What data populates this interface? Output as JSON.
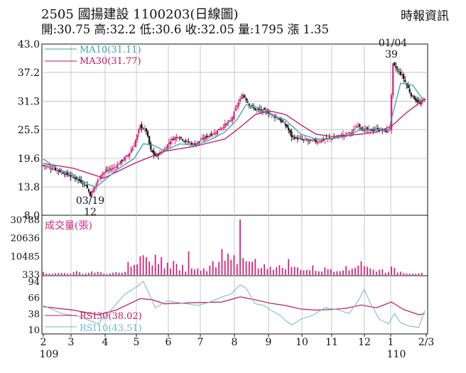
{
  "header": {
    "code": "2505",
    "name": "國揚建設",
    "date": "1100203",
    "chart_kind": "(日線圖)",
    "source": "時報資訊",
    "open_label": "開:",
    "open": "30.75",
    "high_label": "高:",
    "high": "32.2",
    "low_label": "低:",
    "low": "30.6",
    "close_label": "收:",
    "close": "32.05",
    "volume_label": "量:",
    "volume": "1795",
    "change_label": "漲",
    "change": "1.35"
  },
  "colors": {
    "up": "#d6247a",
    "down": "#111111",
    "ma10": "#3aa0b6",
    "ma30": "#c2185b",
    "volume": "#d6247a",
    "rsi30": "#c2185b",
    "rsi10": "#6fb7c7",
    "grid": "#bdbdbd"
  },
  "chart_data": {
    "type": "candlestick",
    "x_ticks": [
      "2",
      "3",
      "4",
      "5",
      "6",
      "7",
      "8",
      "9",
      "10",
      "11",
      "12",
      "1",
      "2/3"
    ],
    "x_year_labels": [
      {
        "after_tick": "2",
        "text": "109"
      },
      {
        "after_tick": "1",
        "text": "110"
      }
    ],
    "price_panel": {
      "y_ticks": [
        "43.0",
        "37.2",
        "31.3",
        "25.5",
        "19.6",
        "13.8",
        "8.0"
      ],
      "ylim": [
        8.0,
        43.0
      ],
      "legend": [
        {
          "key": "MA10",
          "label": "MA10(31.11)"
        },
        {
          "key": "MA30",
          "label": "MA30(31.77)"
        }
      ],
      "annotations": [
        {
          "date": "03/19",
          "value": "12",
          "kind": "low"
        },
        {
          "date": "01/04",
          "value": "39",
          "kind": "high"
        }
      ],
      "close_path": [
        [
          0,
          18.2
        ],
        [
          8,
          17.4
        ],
        [
          16,
          16.3
        ],
        [
          22,
          15.5
        ],
        [
          28,
          14.2
        ],
        [
          31,
          12.2
        ],
        [
          34,
          13.9
        ],
        [
          38,
          16.4
        ],
        [
          42,
          17.1
        ],
        [
          47,
          17.8
        ],
        [
          52,
          19.2
        ],
        [
          56,
          20.3
        ],
        [
          60,
          22.4
        ],
        [
          64,
          26.3
        ],
        [
          68,
          25.2
        ],
        [
          71,
          21.2
        ],
        [
          74,
          20.1
        ],
        [
          79,
          21.1
        ],
        [
          84,
          23.3
        ],
        [
          89,
          24.2
        ],
        [
          94,
          23.1
        ],
        [
          99,
          22.5
        ],
        [
          104,
          23.3
        ],
        [
          109,
          24.3
        ],
        [
          114,
          25.0
        ],
        [
          119,
          26.3
        ],
        [
          124,
          27.3
        ],
        [
          128,
          30.5
        ],
        [
          132,
          32.7
        ],
        [
          136,
          30.6
        ],
        [
          140,
          29.6
        ],
        [
          146,
          29.3
        ],
        [
          151,
          28.6
        ],
        [
          156,
          27.6
        ],
        [
          161,
          26.0
        ],
        [
          164,
          24.1
        ],
        [
          169,
          23.6
        ],
        [
          174,
          23.3
        ],
        [
          180,
          23.1
        ],
        [
          186,
          23.5
        ],
        [
          192,
          23.9
        ],
        [
          198,
          24.4
        ],
        [
          204,
          25.0
        ],
        [
          208,
          26.6
        ],
        [
          211,
          25.6
        ],
        [
          216,
          25.3
        ],
        [
          221,
          25.6
        ],
        [
          226,
          25.2
        ],
        [
          229,
          25.8
        ],
        [
          231,
          38.8
        ],
        [
          234,
          37.6
        ],
        [
          237,
          36.6
        ],
        [
          240,
          34.6
        ],
        [
          243,
          32.6
        ],
        [
          246,
          31.6
        ],
        [
          249,
          30.7
        ],
        [
          252,
          32.05
        ]
      ],
      "ma10_path": [
        [
          0,
          19.5
        ],
        [
          10,
          17.4
        ],
        [
          20,
          16.3
        ],
        [
          30,
          14.3
        ],
        [
          35,
          13.8
        ],
        [
          42,
          15.6
        ],
        [
          50,
          17.6
        ],
        [
          60,
          19.6
        ],
        [
          66,
          22.6
        ],
        [
          72,
          22.4
        ],
        [
          80,
          21.2
        ],
        [
          90,
          22.6
        ],
        [
          100,
          22.3
        ],
        [
          110,
          23.4
        ],
        [
          120,
          25.0
        ],
        [
          128,
          27.6
        ],
        [
          134,
          30.6
        ],
        [
          140,
          30.2
        ],
        [
          150,
          28.6
        ],
        [
          160,
          27.5
        ],
        [
          170,
          24.6
        ],
        [
          180,
          23.6
        ],
        [
          190,
          23.6
        ],
        [
          200,
          24.1
        ],
        [
          210,
          25.6
        ],
        [
          220,
          25.6
        ],
        [
          228,
          25.3
        ],
        [
          236,
          35.0
        ],
        [
          244,
          34.6
        ],
        [
          252,
          31.11
        ]
      ],
      "ma30_path": [
        [
          0,
          18.6
        ],
        [
          20,
          17.6
        ],
        [
          40,
          15.6
        ],
        [
          60,
          18.6
        ],
        [
          80,
          21.1
        ],
        [
          100,
          22.1
        ],
        [
          120,
          23.6
        ],
        [
          130,
          26.0
        ],
        [
          140,
          28.6
        ],
        [
          150,
          29.3
        ],
        [
          160,
          28.6
        ],
        [
          170,
          26.5
        ],
        [
          180,
          24.6
        ],
        [
          190,
          24.1
        ],
        [
          200,
          24.3
        ],
        [
          210,
          24.6
        ],
        [
          220,
          25.0
        ],
        [
          230,
          26.2
        ],
        [
          240,
          29.0
        ],
        [
          252,
          31.77
        ]
      ]
    },
    "volume_panel": {
      "y_ticks": [
        "30788",
        "20636",
        "10485",
        "333"
      ],
      "ylim": [
        333,
        30788
      ],
      "label": "成交量(張)",
      "values_by_day": [
        [
          0,
          1500
        ],
        [
          8,
          900
        ],
        [
          12,
          1300
        ],
        [
          18,
          1100
        ],
        [
          22,
          1800
        ],
        [
          28,
          1000
        ],
        [
          33,
          2400
        ],
        [
          40,
          800
        ],
        [
          48,
          1300
        ],
        [
          55,
          1700
        ],
        [
          57,
          12000
        ],
        [
          60,
          5400
        ],
        [
          64,
          9800
        ],
        [
          66,
          12700
        ],
        [
          68,
          8800
        ],
        [
          70,
          11600
        ],
        [
          72,
          6700
        ],
        [
          74,
          12100
        ],
        [
          76,
          5900
        ],
        [
          78,
          8600
        ],
        [
          80,
          7100
        ],
        [
          82,
          6400
        ],
        [
          84,
          4900
        ],
        [
          86,
          8400
        ],
        [
          88,
          6100
        ],
        [
          90,
          4300
        ],
        [
          92,
          5600
        ],
        [
          94,
          4000
        ],
        [
          96,
          12400
        ],
        [
          98,
          3600
        ],
        [
          100,
          6200
        ],
        [
          102,
          3800
        ],
        [
          104,
          4300
        ],
        [
          106,
          5700
        ],
        [
          108,
          3700
        ],
        [
          110,
          7700
        ],
        [
          112,
          6400
        ],
        [
          114,
          4500
        ],
        [
          116,
          7900
        ],
        [
          118,
          14200
        ],
        [
          120,
          8300
        ],
        [
          122,
          13400
        ],
        [
          124,
          7300
        ],
        [
          126,
          12800
        ],
        [
          128,
          6800
        ],
        [
          130,
          30788
        ],
        [
          132,
          9300
        ],
        [
          134,
          6400
        ],
        [
          136,
          12300
        ],
        [
          138,
          7800
        ],
        [
          140,
          13700
        ],
        [
          142,
          6500
        ],
        [
          144,
          3900
        ],
        [
          146,
          5600
        ],
        [
          150,
          6700
        ],
        [
          154,
          4700
        ],
        [
          158,
          5100
        ],
        [
          162,
          8200
        ],
        [
          166,
          4300
        ],
        [
          170,
          4900
        ],
        [
          174,
          3100
        ],
        [
          178,
          4600
        ],
        [
          182,
          2900
        ],
        [
          186,
          3800
        ],
        [
          190,
          4200
        ],
        [
          194,
          3400
        ],
        [
          198,
          5200
        ],
        [
          202,
          3000
        ],
        [
          206,
          6300
        ],
        [
          210,
          9700
        ],
        [
          214,
          4800
        ],
        [
          218,
          3000
        ],
        [
          222,
          3900
        ],
        [
          226,
          2400
        ],
        [
          230,
          4200
        ],
        [
          234,
          2300
        ],
        [
          238,
          1700
        ],
        [
          242,
          1300
        ],
        [
          246,
          1000
        ],
        [
          250,
          1795
        ]
      ]
    },
    "rsi_panel": {
      "y_ticks": [
        "94",
        "66",
        "38",
        "10"
      ],
      "ylim": [
        10,
        94
      ],
      "legend": [
        {
          "key": "RSI30",
          "label": "RSI30(38.02)"
        },
        {
          "key": "RSI10",
          "label": "RSI10(43.51)"
        }
      ],
      "rsi30_path": [
        [
          0,
          50
        ],
        [
          20,
          44
        ],
        [
          36,
          36
        ],
        [
          48,
          44
        ],
        [
          64,
          64
        ],
        [
          72,
          62
        ],
        [
          80,
          55
        ],
        [
          100,
          57
        ],
        [
          118,
          58
        ],
        [
          130,
          67
        ],
        [
          140,
          62
        ],
        [
          150,
          56
        ],
        [
          160,
          52
        ],
        [
          170,
          46
        ],
        [
          180,
          44
        ],
        [
          190,
          45
        ],
        [
          200,
          47
        ],
        [
          210,
          53
        ],
        [
          220,
          48
        ],
        [
          230,
          58
        ],
        [
          238,
          45
        ],
        [
          248,
          36
        ],
        [
          252,
          38.02
        ]
      ],
      "rsi10_path": [
        [
          0,
          52
        ],
        [
          12,
          38
        ],
        [
          24,
          33
        ],
        [
          36,
          20
        ],
        [
          44,
          42
        ],
        [
          54,
          72
        ],
        [
          62,
          85
        ],
        [
          66,
          94
        ],
        [
          70,
          72
        ],
        [
          74,
          48
        ],
        [
          82,
          60
        ],
        [
          92,
          56
        ],
        [
          102,
          52
        ],
        [
          110,
          58
        ],
        [
          118,
          67
        ],
        [
          124,
          72
        ],
        [
          130,
          88
        ],
        [
          134,
          82
        ],
        [
          140,
          55
        ],
        [
          146,
          52
        ],
        [
          150,
          44
        ],
        [
          156,
          36
        ],
        [
          160,
          26
        ],
        [
          164,
          18
        ],
        [
          170,
          28
        ],
        [
          178,
          35
        ],
        [
          186,
          48
        ],
        [
          194,
          45
        ],
        [
          202,
          38
        ],
        [
          208,
          60
        ],
        [
          212,
          80
        ],
        [
          216,
          56
        ],
        [
          222,
          28
        ],
        [
          228,
          20
        ],
        [
          232,
          38
        ],
        [
          236,
          22
        ],
        [
          242,
          16
        ],
        [
          248,
          14
        ],
        [
          252,
          43.51
        ]
      ]
    }
  }
}
